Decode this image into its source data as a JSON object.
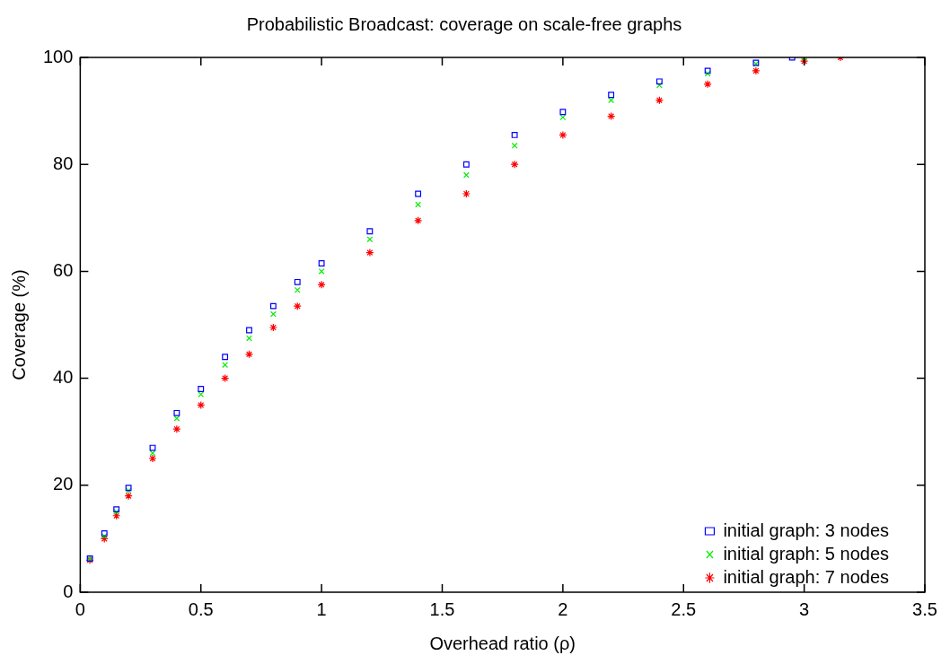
{
  "chart_data": {
    "type": "scatter",
    "title": "Probabilistic Broadcast: coverage on scale-free graphs",
    "xlabel": "Overhead ratio (ρ)",
    "ylabel": "Coverage (%)",
    "xlim": [
      0,
      3.5
    ],
    "xticks": [
      0,
      0.5,
      1,
      1.5,
      2,
      2.5,
      3,
      3.5
    ],
    "ylim": [
      0,
      100
    ],
    "yticks": [
      0,
      20,
      40,
      60,
      80,
      100
    ],
    "grid": false,
    "legend": "bottom right",
    "series": [
      {
        "name": "initial graph: 3 nodes",
        "color": "#0000ff",
        "marker": "square",
        "x": [
          0.04,
          0.1,
          0.15,
          0.2,
          0.3,
          0.4,
          0.5,
          0.6,
          0.7,
          0.8,
          0.9,
          1.0,
          1.2,
          1.4,
          1.6,
          1.8,
          2.0,
          2.2,
          2.4,
          2.6,
          2.8,
          2.95
        ],
        "values": [
          6.3,
          11,
          15.5,
          19.5,
          27,
          33.5,
          38,
          44,
          49,
          53.5,
          58,
          61.5,
          67.5,
          74.5,
          80,
          85.5,
          89.8,
          93,
          95.5,
          97.5,
          99,
          100
        ]
      },
      {
        "name": "initial graph: 5 nodes",
        "color": "#00ee00",
        "marker": "cross",
        "x": [
          0.04,
          0.1,
          0.15,
          0.2,
          0.3,
          0.4,
          0.5,
          0.6,
          0.7,
          0.8,
          0.9,
          1.0,
          1.2,
          1.4,
          1.6,
          1.8,
          2.0,
          2.2,
          2.4,
          2.6,
          2.8,
          3.0
        ],
        "values": [
          6.2,
          10.5,
          15,
          19,
          26,
          32.5,
          37,
          42.5,
          47.5,
          52,
          56.5,
          60,
          66,
          72.5,
          78,
          83.5,
          88.8,
          92,
          94.8,
          97,
          98.8,
          100
        ]
      },
      {
        "name": "initial graph: 7 nodes",
        "color": "#ff0000",
        "x": [
          0.04,
          0.1,
          0.15,
          0.2,
          0.3,
          0.4,
          0.5,
          0.6,
          0.7,
          0.8,
          0.9,
          1.0,
          1.2,
          1.4,
          1.6,
          1.8,
          2.0,
          2.2,
          2.4,
          2.6,
          2.8,
          3.0,
          3.15
        ],
        "values": [
          6.0,
          10,
          14.3,
          18,
          25,
          30.5,
          35,
          40,
          44.5,
          49.5,
          53.5,
          57.5,
          63.5,
          69.5,
          74.5,
          80,
          85.5,
          89,
          92,
          95,
          97.5,
          99.3,
          100
        ]
      }
    ]
  }
}
